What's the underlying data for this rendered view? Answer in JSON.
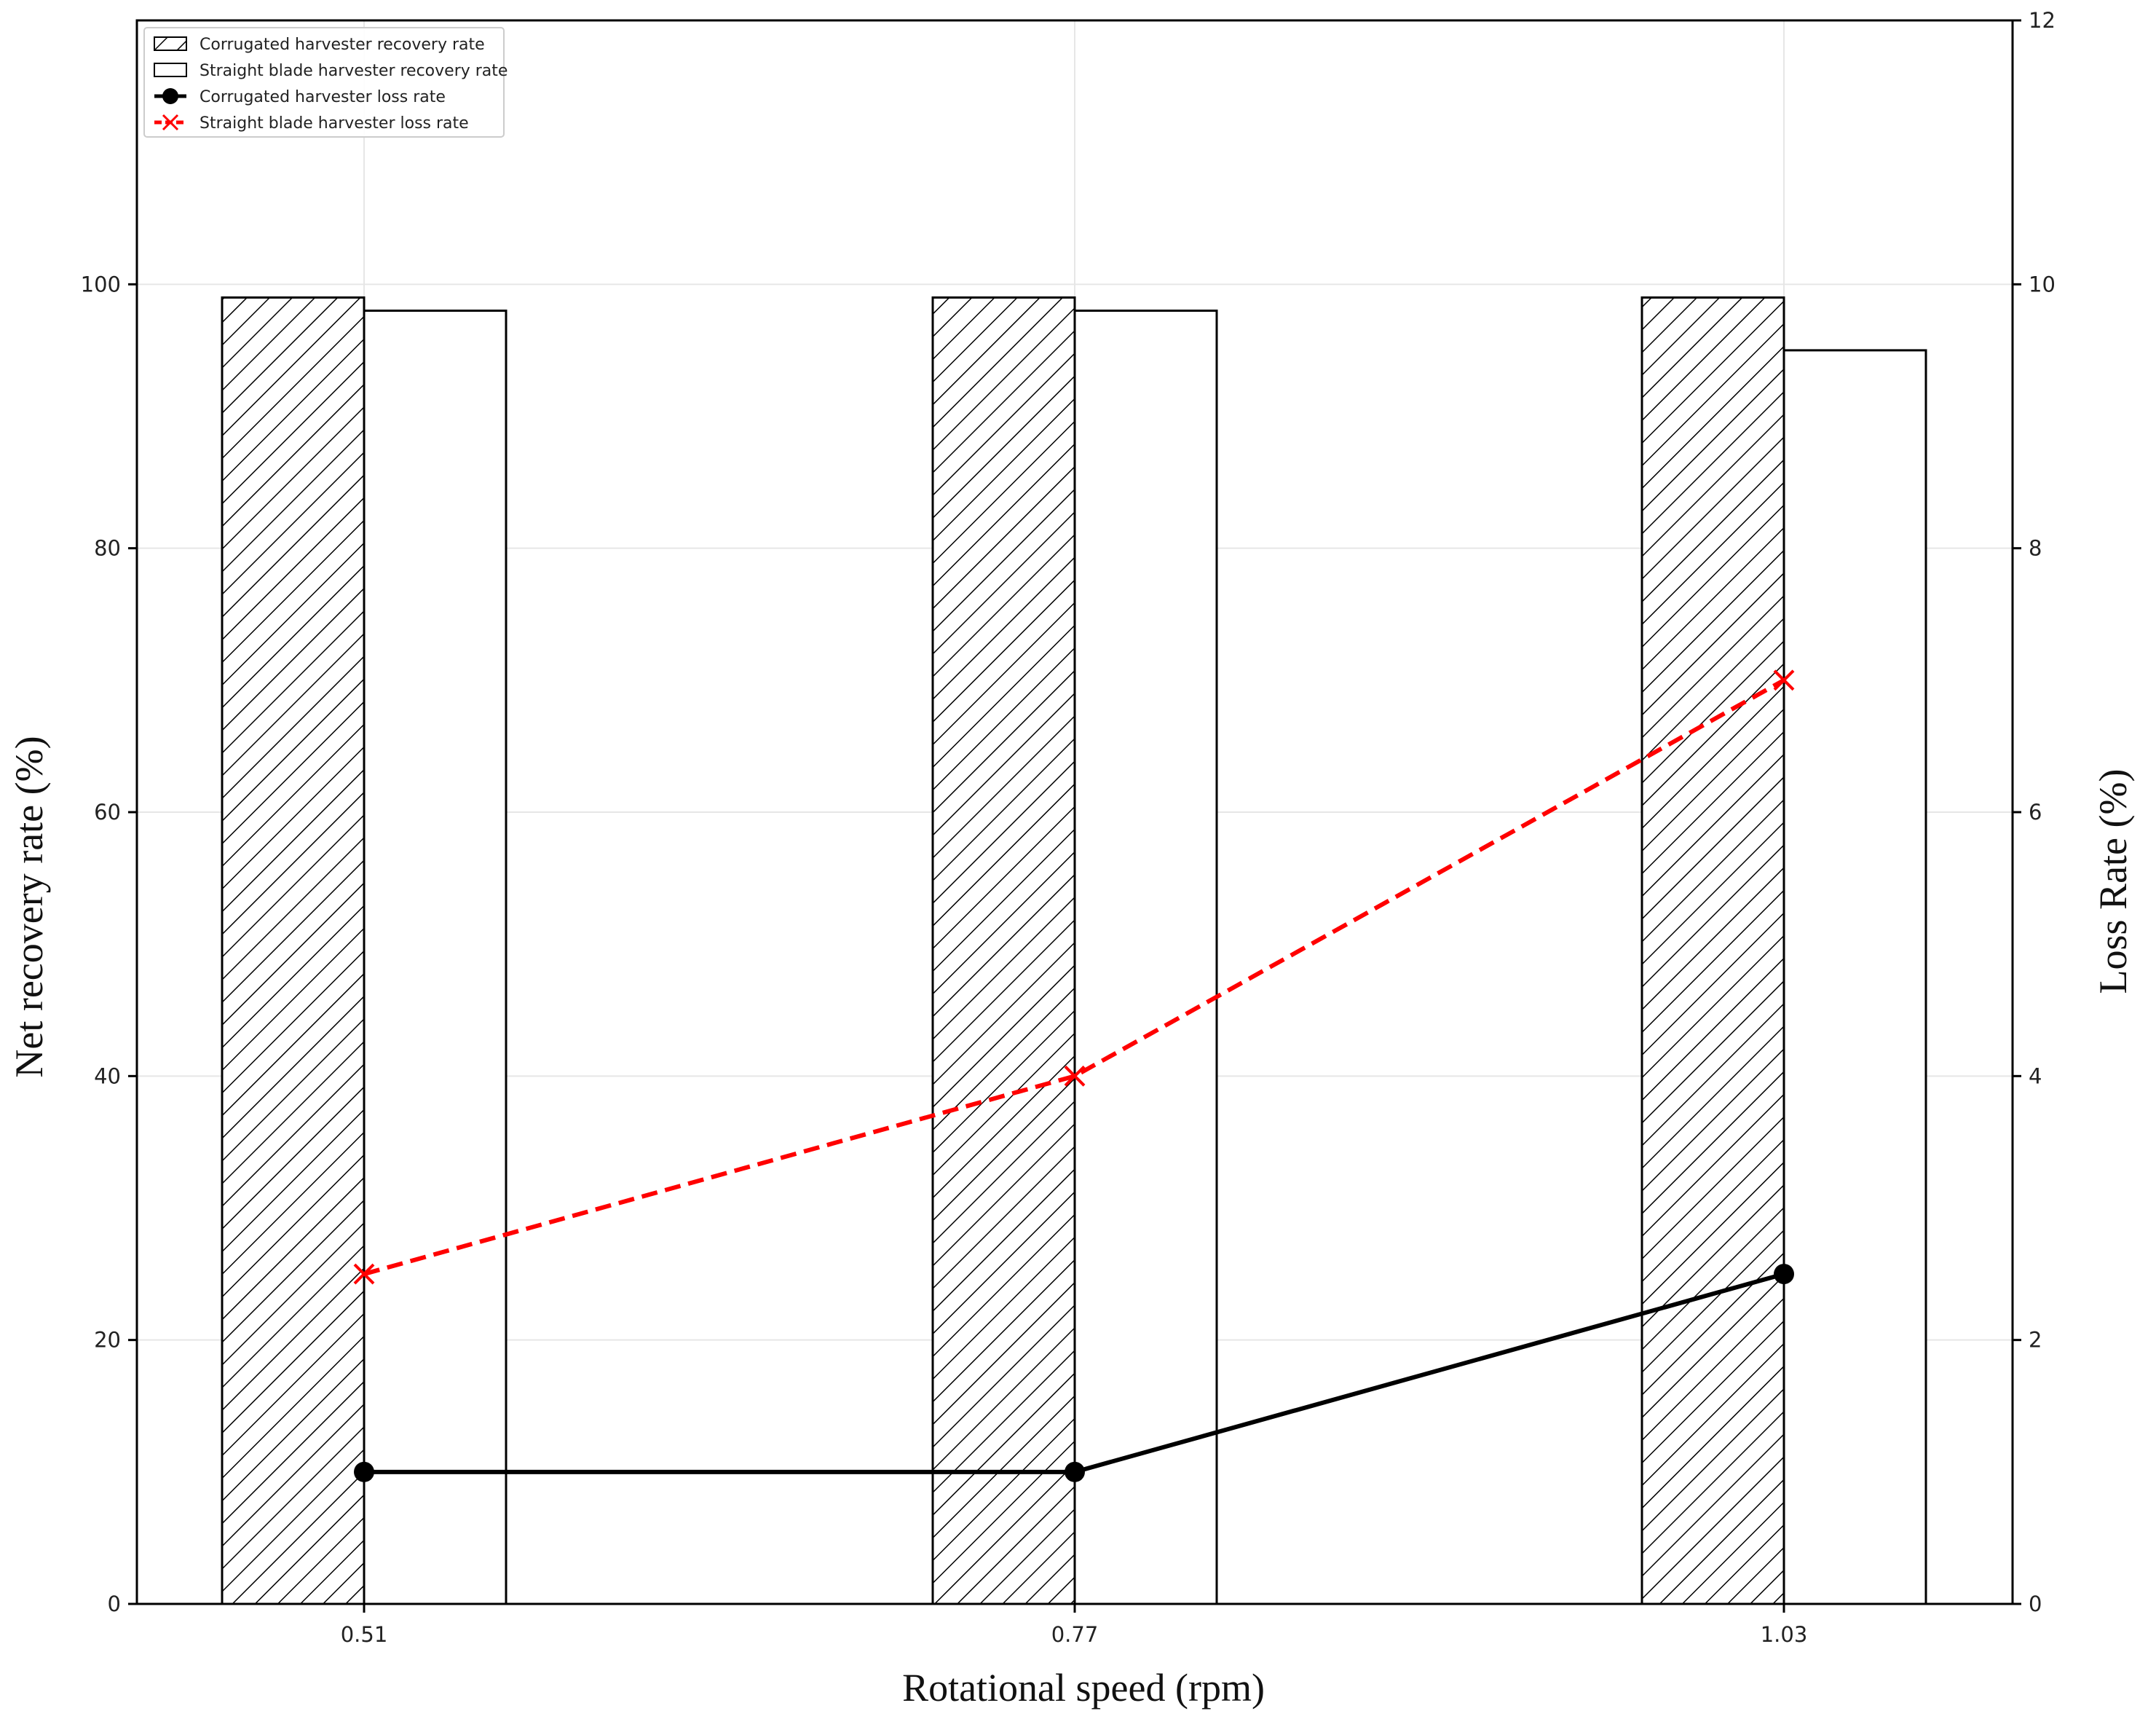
{
  "chart_data": {
    "type": "bar",
    "title": "",
    "xlabel": "Rotational speed (rpm)",
    "ylabel": "Net recovery rate (%)",
    "y2label": "Loss Rate (%)",
    "categories": [
      "0.51",
      "0.77",
      "1.03"
    ],
    "ylim": [
      0,
      120
    ],
    "y2lim": [
      0,
      12
    ],
    "yticks": [
      0,
      20,
      40,
      60,
      80,
      100
    ],
    "y2ticks": [
      0,
      2,
      4,
      6,
      8,
      10,
      12
    ],
    "grid": true,
    "legend_position": "top-left",
    "bar_series": [
      {
        "name": "Corrugated harvester recovery rate",
        "values": [
          99,
          99,
          99
        ],
        "pattern": "hatched"
      },
      {
        "name": "Straight blade harvester recovery rate",
        "values": [
          98,
          98,
          95
        ],
        "pattern": "plain"
      }
    ],
    "line_series": [
      {
        "name": "Corrugated harvester loss rate",
        "values": [
          1.0,
          1.0,
          2.5
        ],
        "axis": "right",
        "color": "#000000",
        "marker": "circle",
        "style": "solid"
      },
      {
        "name": "Straight blade harvester loss rate",
        "values": [
          2.5,
          4.0,
          7.0
        ],
        "axis": "right",
        "color": "#ff0000",
        "marker": "x",
        "style": "dashed"
      }
    ]
  }
}
